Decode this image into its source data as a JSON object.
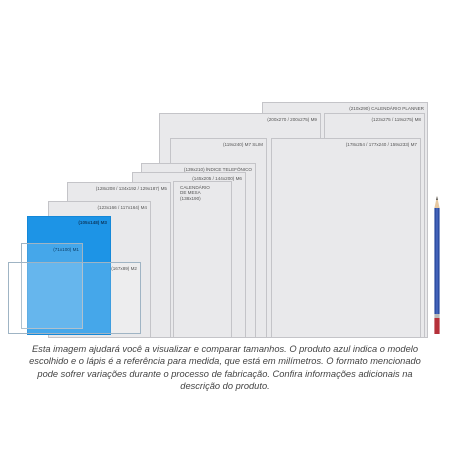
{
  "sizes": {
    "calendario_planner": "(210x290) CALENDÁRIO PLANNER",
    "m9": "(200x270 / 200x275) M9",
    "m8": "(123x275 / 119x275) M8",
    "m7_slim": "(119x240) M7 SLIM",
    "m7": "(178x254 / 177x240 / 159x233) M7",
    "indice_telefonico": "(139x210) ÍNDICE TELEFÔNICO",
    "m6": "(145x205 / 144x200) M6",
    "calendario_mesa_1": "CALENDÁRIO",
    "calendario_mesa_2": "DE MESA",
    "calendario_mesa_3": "(138x190)",
    "m5": "(128x208 / 134x192 / 129x187) M5",
    "m4": "(123x166 / 117x164) M4",
    "m3": "(105x148) M3",
    "m1": "(71x100) M1",
    "m2": "(167x89) M2"
  },
  "caption": "Esta imagem ajudará você a visualizar e comparar tamanhos. O produto azul indica o modelo escolhido e o lápis é a referência para medida, que está em milímetros. O formato mencionado pode sofrer variações durante o processo de fabricação. Confira informações adicionais na descrição do produto.",
  "colors": {
    "selected": "#1d94e6",
    "sheet": "#e9e9eb",
    "pencil_body": "#2f4fa3",
    "pencil_end": "#b5303a"
  },
  "selected_model": "M3",
  "icons": {
    "pencil": "pencil-icon"
  }
}
